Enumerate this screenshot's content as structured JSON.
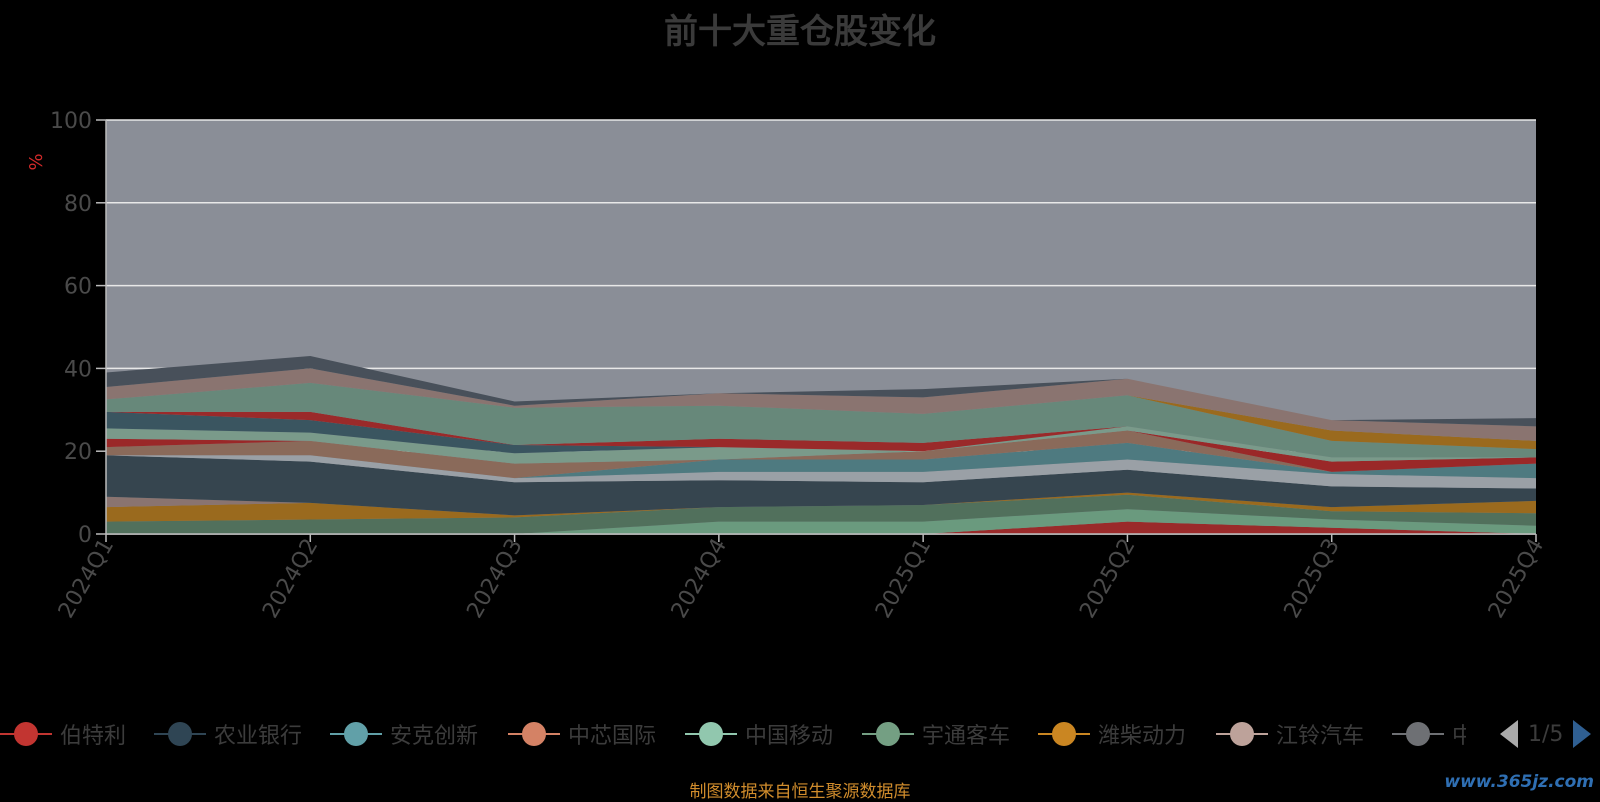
{
  "chart_data": {
    "type": "area",
    "title": "前十大重仓股变化",
    "ylabel": "%",
    "xlabel": "",
    "ylim": [
      0,
      100
    ],
    "yticks": [
      0,
      20,
      40,
      60,
      80,
      100
    ],
    "grid": true,
    "stacked": true,
    "categories": [
      "2024Q1",
      "2024Q2",
      "2024Q3",
      "2024Q4",
      "2025Q1",
      "2025Q2",
      "2025Q3",
      "2025Q4"
    ],
    "series": [
      {
        "color": "#9a2a2a",
        "values": [
          0,
          0,
          0,
          0,
          0,
          3,
          1.5,
          0
        ]
      },
      {
        "color": "#6a9a7e",
        "values": [
          0,
          0,
          0,
          3,
          3,
          3,
          2,
          2
        ]
      },
      {
        "color": "#51705c",
        "values": [
          3,
          3.5,
          4,
          3.5,
          4,
          3.5,
          2,
          3
        ]
      },
      {
        "color": "#9a6a1e",
        "values": [
          3.5,
          4,
          0.5,
          0,
          0,
          0.5,
          1,
          3
        ]
      },
      {
        "color": "#8a7470",
        "values": [
          2.5,
          0,
          0,
          0,
          0,
          0,
          0,
          0
        ]
      },
      {
        "color": "#36454f",
        "values": [
          10,
          10,
          8,
          6.5,
          5.5,
          5.5,
          5,
          3
        ]
      },
      {
        "color": "#9aa0a6",
        "values": [
          0,
          1.5,
          1,
          2,
          2.5,
          2.5,
          3,
          2.5
        ]
      },
      {
        "color": "#4e7a80",
        "values": [
          0,
          0,
          0,
          3,
          3,
          4,
          0.5,
          3.5
        ]
      },
      {
        "color": "#8a6a5a",
        "values": [
          2,
          3.5,
          3.5,
          0,
          2,
          3,
          0,
          0
        ]
      },
      {
        "color": "#9a2828",
        "values": [
          2,
          0,
          0,
          0,
          0,
          0,
          2.5,
          1.5
        ]
      },
      {
        "color": "#7a9a8a",
        "values": [
          2.5,
          2,
          2.5,
          3,
          0,
          1,
          1,
          0
        ]
      },
      {
        "color": "#3a5560",
        "values": [
          4,
          3,
          2,
          0,
          0,
          0,
          0,
          0
        ]
      },
      {
        "color": "#9a2a2a",
        "values": [
          0,
          2,
          0,
          2,
          2,
          0,
          0,
          0
        ]
      },
      {
        "color": "#67887a",
        "values": [
          3,
          7,
          9,
          8,
          7,
          7.5,
          4,
          2
        ]
      },
      {
        "color": "#9a6a1e",
        "values": [
          0,
          0,
          0,
          0,
          0,
          0,
          2.5,
          2
        ]
      },
      {
        "color": "#8a7470",
        "values": [
          3,
          3.5,
          0.5,
          3,
          4,
          4,
          2.5,
          3.5
        ]
      },
      {
        "color": "#48505a",
        "values": [
          3.5,
          3,
          1,
          0,
          2,
          0,
          0,
          2
        ]
      }
    ]
  },
  "legend": {
    "items": [
      {
        "label": "伯特利",
        "color": "#c23531"
      },
      {
        "label": "农业银行",
        "color": "#2f4554"
      },
      {
        "label": "安克创新",
        "color": "#61a0a8"
      },
      {
        "label": "中芯国际",
        "color": "#d48265"
      },
      {
        "label": "中国移动",
        "color": "#91c7ae"
      },
      {
        "label": "宇通客车",
        "color": "#749f83"
      },
      {
        "label": "潍柴动力",
        "color": "#ca8622"
      },
      {
        "label": "江铃汽车",
        "color": "#bda29a"
      },
      {
        "label": "中",
        "color": "#6e7074"
      }
    ],
    "page": "1/5"
  },
  "source_note": "制图数据来自恒生聚源数据库",
  "watermark": "www.365jz.com"
}
